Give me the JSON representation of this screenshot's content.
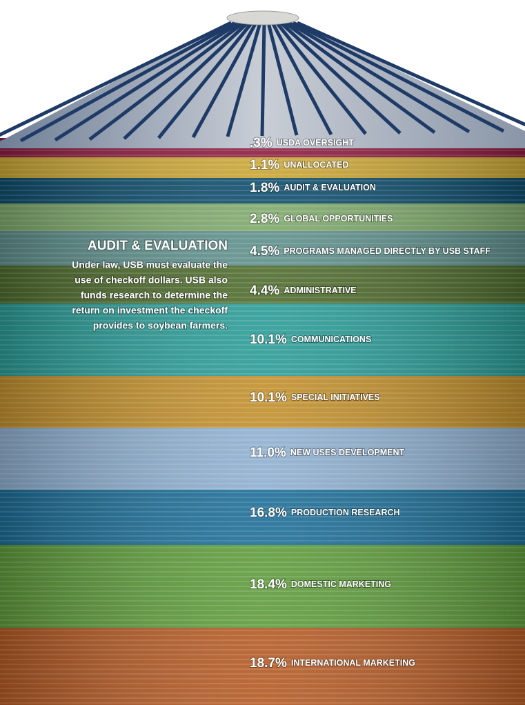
{
  "sidebar": {
    "title": "AUDIT & EVALUATION",
    "lines": [
      "Under law, USB must evaluate the",
      "use of checkoff dollars. USB also",
      "funds research to determine the",
      "return on investment the checkoff",
      "provides to soybean farmers."
    ]
  },
  "bands": [
    {
      "percent": ".3%",
      "label": "USDA OVERSIGHT",
      "color": "#8c1c40"
    },
    {
      "percent": "1.1%",
      "label": "UNALLOCATED",
      "color": "#c9a534"
    },
    {
      "percent": "1.8%",
      "label": "AUDIT & EVALUATION",
      "color": "#0e4d6c"
    },
    {
      "percent": "2.8%",
      "label": "GLOBAL OPPORTUNITIES",
      "color": "#7ea86b"
    },
    {
      "percent": "4.5%",
      "label": "PROGRAMS MANAGED DIRECTLY BY USB STAFF",
      "color": "#5e8f8b"
    },
    {
      "percent": "4.4%",
      "label": "ADMINISTRATIVE",
      "color": "#4e6b2c"
    },
    {
      "percent": "10.1%",
      "label": "COMMUNICATIONS",
      "color": "#2a9b96"
    },
    {
      "percent": "10.1%",
      "label": "SPECIAL INITIATIVES",
      "color": "#c18f2c"
    },
    {
      "percent": "11.0%",
      "label": "NEW USES DEVELOPMENT",
      "color": "#8eafcf"
    },
    {
      "percent": "16.8%",
      "label": "PRODUCTION RESEARCH",
      "color": "#1d6e97"
    },
    {
      "percent": "18.4%",
      "label": "DOMESTIC MARKETING",
      "color": "#5e9b3b"
    },
    {
      "percent": "18.7%",
      "label": "INTERNATIONAL MARKETING",
      "color": "#b45a24"
    }
  ]
}
